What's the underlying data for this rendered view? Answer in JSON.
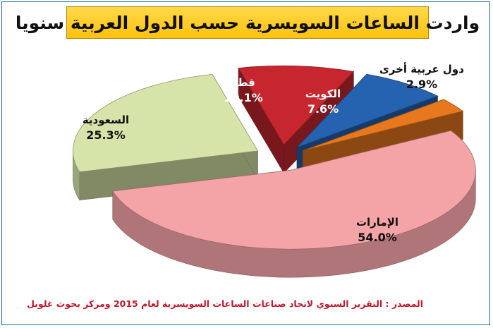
{
  "chart_data": {
    "type": "pie",
    "title": "واردت الساعات السويسرية حسب الدول العربية سنويا",
    "slices": [
      {
        "label": "الإمارات",
        "value": 54.0,
        "value_label": "54.0%",
        "color": "#f4a3a6"
      },
      {
        "label": "السعودية",
        "value": 25.3,
        "value_label": "25.3%",
        "color": "#d7e4a9"
      },
      {
        "label": "قطر",
        "value": 10.1,
        "value_label": "10.1%",
        "color": "#c8262e"
      },
      {
        "label": "الكويت",
        "value": 7.6,
        "value_label": "7.6%",
        "color": "#2563b0"
      },
      {
        "label": "دول عربية أخرى",
        "value": 2.9,
        "value_label": "2.9%",
        "color": "#e8781e"
      }
    ],
    "source": "المصدر : التقرير السنوي لاتحاد صناعات الساعات السويسرية لعام 2015 ومركز بحوث غلوبل"
  },
  "colors": {
    "title_background": "#ffc20e",
    "source_text": "#c0182a",
    "frame_border": "#1a6e8e"
  }
}
